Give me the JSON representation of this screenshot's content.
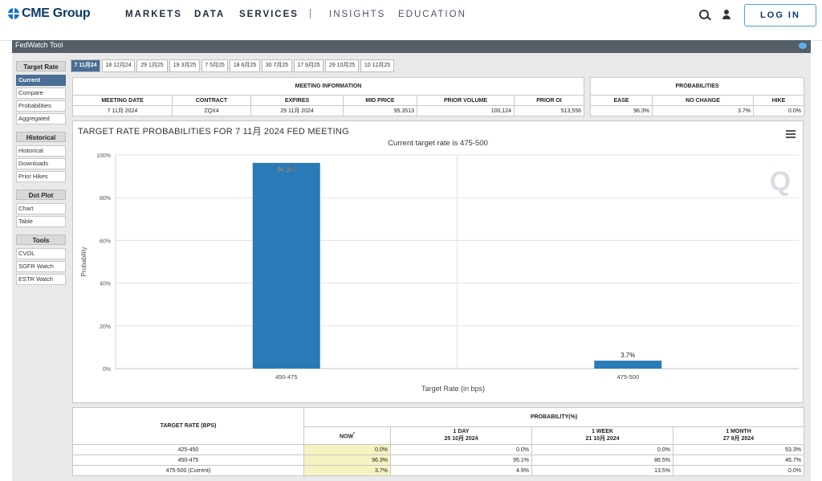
{
  "nav": {
    "logo": "CME Group",
    "links": [
      "MARKETS",
      "DATA",
      "SERVICES"
    ],
    "separator": "|",
    "links_secondary": [
      "INSIGHTS",
      "EDUCATION"
    ],
    "login_label": "LOG IN"
  },
  "fedwatch": {
    "bar_title": "FedWatch Tool"
  },
  "sidebar": {
    "groups": [
      {
        "title": "Target Rate",
        "items": [
          "Current",
          "Compare",
          "Probabilities",
          "Aggregated"
        ]
      },
      {
        "title": "Historical",
        "items": [
          "Historical",
          "Downloads",
          "Prior Hikes"
        ]
      },
      {
        "title": "Dot Plot",
        "items": [
          "Chart",
          "Table"
        ]
      },
      {
        "title": "Tools",
        "items": [
          "CVOL",
          "SOFR Watch",
          "ESTR Watch"
        ]
      }
    ],
    "active_item": "Current"
  },
  "tabs": [
    "7 11月24",
    "18 12月24",
    "29 1月25",
    "19 3月25",
    "7 5月25",
    "18 6月25",
    "30 7月25",
    "17 9月25",
    "29 10月25",
    "10 12月25"
  ],
  "meeting_info": {
    "title": "MEETING INFORMATION",
    "headers": [
      "MEETING DATE",
      "CONTRACT",
      "EXPIRES",
      "MID PRICE",
      "PRIOR VOLUME",
      "PRIOR OI"
    ],
    "values": [
      "7 11月 2024",
      "ZQX4",
      "29 11月 2024",
      "95.3513",
      "100,124",
      "513,556"
    ]
  },
  "probabilities": {
    "title": "PROBABILITIES",
    "headers": [
      "EASE",
      "NO CHANGE",
      "HIKE"
    ],
    "values": [
      "96.3%",
      "3.7%",
      "0.0%"
    ]
  },
  "chart_data": {
    "type": "bar",
    "title": "TARGET RATE PROBABILITIES FOR 7 11月 2024 FED MEETING",
    "subtitle": "Current target rate is 475-500",
    "xlabel": "Target Rate (in bps)",
    "ylabel": "Probability",
    "categories": [
      "450-475",
      "475-500"
    ],
    "values": [
      96.3,
      3.7
    ],
    "data_labels": [
      "96.3%",
      "3.7%"
    ],
    "ylim": [
      0,
      100
    ],
    "yticks": [
      "0%",
      "20%",
      "40%",
      "60%",
      "80%",
      "100%"
    ],
    "ytick_values": [
      0,
      20,
      40,
      60,
      80,
      100
    ],
    "grid": true,
    "bar_color": "#2a7ab7",
    "watermark": "Q"
  },
  "prob_table": {
    "col_header": "TARGET RATE (BPS)",
    "group_header": "PROBABILITY(%)",
    "now_label": "NOW",
    "now_mark": "*",
    "periods": [
      {
        "label": "1 DAY",
        "date": "25 10月 2024"
      },
      {
        "label": "1 WEEK",
        "date": "21 10月 2024"
      },
      {
        "label": "1 MONTH",
        "date": "27 9月 2024"
      }
    ],
    "rows": [
      {
        "rate": "425-450",
        "now": "0.0%",
        "day": "0.0%",
        "week": "0.0%",
        "month": "53.3%"
      },
      {
        "rate": "450-475",
        "now": "96.3%",
        "day": "95.1%",
        "week": "86.5%",
        "month": "46.7%"
      },
      {
        "rate": "475-500 (Current)",
        "now": "3.7%",
        "day": "4.9%",
        "week": "13.5%",
        "month": "0.0%"
      }
    ]
  }
}
